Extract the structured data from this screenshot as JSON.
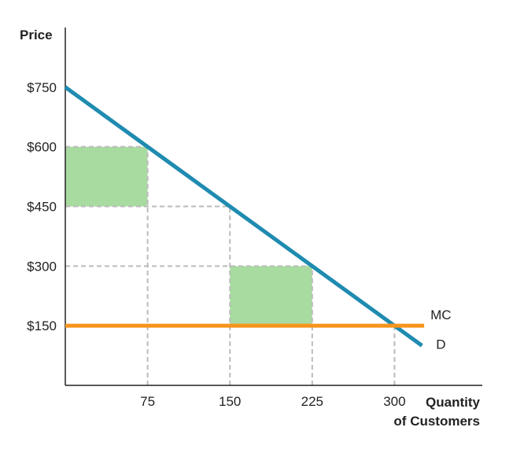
{
  "chart_data": {
    "type": "line",
    "ylabel": "Price",
    "xlabel_lines": [
      "Quantity",
      "of Customers"
    ],
    "x_ticks": [
      75,
      150,
      225,
      300
    ],
    "x_tick_labels": [
      "75",
      "150",
      "225",
      "300"
    ],
    "y_ticks": [
      150,
      300,
      450,
      600,
      750
    ],
    "y_tick_labels": [
      "$150",
      "$300",
      "$450",
      "$600",
      "$750"
    ],
    "xlim": [
      0,
      380
    ],
    "ylim": [
      0,
      900
    ],
    "series": [
      {
        "name": "D",
        "color": "#1f8bb0",
        "x": [
          0,
          325
        ],
        "y": [
          750,
          100
        ]
      },
      {
        "name": "MC",
        "color": "#f7941d",
        "x": [
          0,
          327
        ],
        "y": [
          150,
          150
        ]
      }
    ],
    "shaded_areas": [
      {
        "color": "#a8dba0",
        "x": [
          0,
          75
        ],
        "y": [
          450,
          600
        ]
      },
      {
        "color": "#a8dba0",
        "x": [
          150,
          225
        ],
        "y": [
          150,
          300
        ]
      }
    ],
    "guide_lines": [
      {
        "x": [
          0,
          75
        ],
        "y": [
          600,
          600
        ]
      },
      {
        "x": [
          0,
          150
        ],
        "y": [
          450,
          450
        ]
      },
      {
        "x": [
          0,
          225
        ],
        "y": [
          300,
          300
        ]
      },
      {
        "x": [
          75,
          75
        ],
        "y": [
          0,
          600
        ]
      },
      {
        "x": [
          150,
          150
        ],
        "y": [
          0,
          450
        ]
      },
      {
        "x": [
          225,
          225
        ],
        "y": [
          0,
          300
        ]
      },
      {
        "x": [
          300,
          300
        ],
        "y": [
          0,
          150
        ]
      }
    ],
    "guide_color": "#bbbbbb",
    "grid": false
  }
}
